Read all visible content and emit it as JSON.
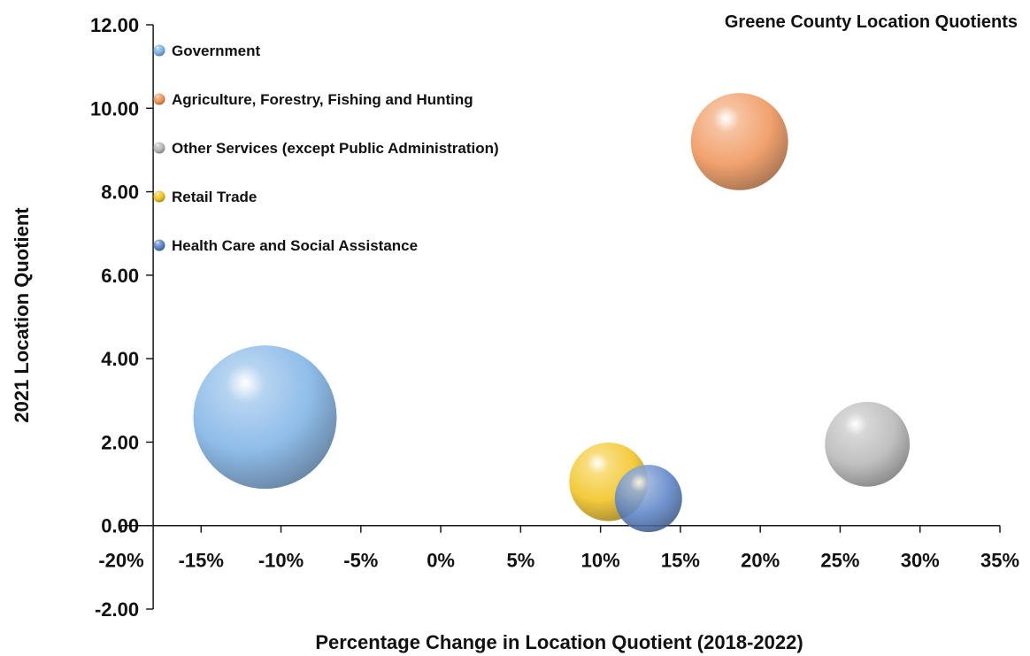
{
  "chart_data": {
    "type": "bubble",
    "title": "Greene County Location Quotients",
    "xlabel": "Percentage Change in Location Quotient (2018-2022)",
    "ylabel": "2021 Location Quotient",
    "xlim": [
      -0.2,
      0.35
    ],
    "ylim": [
      -2,
      12
    ],
    "x_ticks": [
      -0.2,
      -0.15,
      -0.1,
      -0.05,
      0,
      0.05,
      0.1,
      0.15,
      0.2,
      0.25,
      0.3,
      0.35
    ],
    "x_tick_labels": [
      "-20%",
      "-15%",
      "-10%",
      "-5%",
      "0%",
      "5%",
      "10%",
      "15%",
      "20%",
      "25%",
      "30%",
      "35%"
    ],
    "y_ticks": [
      -2,
      0,
      2,
      4,
      6,
      8,
      10,
      12
    ],
    "y_tick_labels": [
      "-2.00",
      "0.00",
      "2.00",
      "4.00",
      "6.00",
      "8.00",
      "10.00",
      "12.00"
    ],
    "grid": false,
    "legend_position": "top-left",
    "series": [
      {
        "name": "Government",
        "x": -0.11,
        "y": 2.6,
        "size": 100,
        "color": "#7FB3E6"
      },
      {
        "name": "Agriculture, Forestry, Fishing and Hunting",
        "x": 0.187,
        "y": 9.2,
        "size": 46,
        "color": "#F0955A"
      },
      {
        "name": "Other Services (except Public Administration)",
        "x": 0.267,
        "y": 1.95,
        "size": 35,
        "color": "#B8B8B8"
      },
      {
        "name": "Retail Trade",
        "x": 0.105,
        "y": 1.05,
        "size": 30,
        "color": "#F2C422"
      },
      {
        "name": "Health Care and Social Assistance",
        "x": 0.13,
        "y": 0.65,
        "size": 22,
        "color": "#5C84C8"
      }
    ]
  }
}
